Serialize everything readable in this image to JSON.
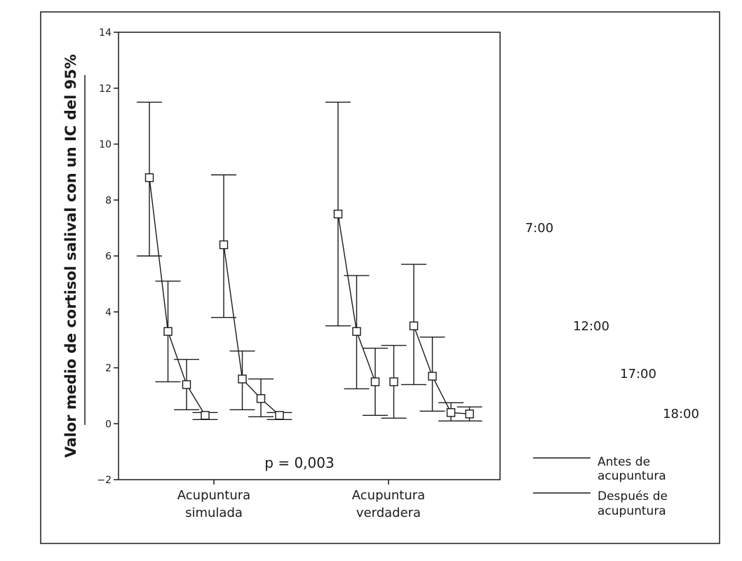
{
  "chart_data": {
    "type": "line",
    "title": "",
    "xlabel": "",
    "ylabel": "Valor medio de cortisol salival con un IC del 95%",
    "ylim": [
      -2,
      14
    ],
    "yticks": [
      "-2",
      "0",
      "2",
      "4",
      "6",
      "8",
      "10",
      "12",
      "14"
    ],
    "categories": [
      {
        "line1": "Acupuntura",
        "line2": "simulada"
      },
      {
        "line1": "Acupuntura",
        "line2": "verdadera"
      }
    ],
    "times": [
      "7:00",
      "12:00",
      "17:00",
      "18:00"
    ],
    "series": [
      {
        "name": "Antes de acupuntura",
        "category": 0,
        "points": [
          {
            "time": "7:00",
            "mean": 8.8,
            "lower": 6.0,
            "upper": 11.5
          },
          {
            "time": "12:00",
            "mean": 3.3,
            "lower": 1.5,
            "upper": 5.1
          },
          {
            "time": "17:00",
            "mean": 1.4,
            "lower": 0.5,
            "upper": 2.3
          },
          {
            "time": "18:00",
            "mean": 0.3,
            "lower": 0.15,
            "upper": 0.4
          }
        ]
      },
      {
        "name": "Después de acupuntura",
        "category": 0,
        "points": [
          {
            "time": "7:00",
            "mean": 6.4,
            "lower": 3.8,
            "upper": 8.9
          },
          {
            "time": "12:00",
            "mean": 1.6,
            "lower": 0.5,
            "upper": 2.6
          },
          {
            "time": "17:00",
            "mean": 0.9,
            "lower": 0.25,
            "upper": 1.6
          },
          {
            "time": "18:00",
            "mean": 0.3,
            "lower": 0.15,
            "upper": 0.4
          }
        ]
      },
      {
        "name": "Antes de acupuntura",
        "category": 1,
        "points": [
          {
            "time": "7:00",
            "mean": 7.5,
            "lower": 3.5,
            "upper": 11.5
          },
          {
            "time": "12:00",
            "mean": 3.3,
            "lower": 1.25,
            "upper": 5.3
          },
          {
            "time": "17:00",
            "mean": 1.5,
            "lower": 0.3,
            "upper": 2.7
          }
        ]
      },
      {
        "name": "Después de acupuntura",
        "category": 1,
        "points": [
          {
            "time": "7:00",
            "mean": 3.5,
            "lower": 1.4,
            "upper": 5.7
          },
          {
            "time": "12:00",
            "mean": 1.7,
            "lower": 0.45,
            "upper": 3.1
          },
          {
            "time": "17:00",
            "mean": 0.4,
            "lower": 0.1,
            "upper": 0.75
          },
          {
            "time": "18:00",
            "mean": 0.35,
            "lower": 0.1,
            "upper": 0.6
          }
        ]
      }
    ],
    "unconnected_points": [
      {
        "category": 1,
        "time": "18:00",
        "mean": 1.5,
        "lower": 0.2,
        "upper": 2.8
      }
    ],
    "annotation": "p = 0,003",
    "legend": {
      "placement": "bottom-right",
      "entries": [
        {
          "line1": "Antes de",
          "line2": "acupuntura"
        },
        {
          "line1": "Después de",
          "line2": "acupuntura"
        }
      ]
    },
    "grid": false,
    "colors": {
      "ink": "#1a1a1a",
      "background": "#ffffff"
    }
  }
}
